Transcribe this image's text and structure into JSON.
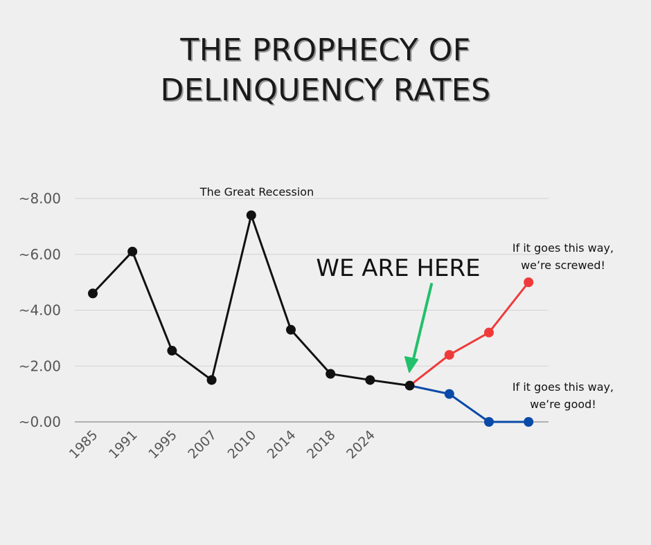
{
  "title": {
    "line1": "THE PROPHECY OF",
    "line2": "DELINQUENCY RATES"
  },
  "chart_data": {
    "type": "line",
    "y_tick_labels": [
      "~0.00",
      "~2.00",
      "~4.00",
      "~6.00",
      "~8.00"
    ],
    "y_ticks": [
      0,
      2,
      4,
      6,
      8
    ],
    "ylim": [
      0,
      8
    ],
    "categories": [
      "1985",
      "1991",
      "1995",
      "2007",
      "2010",
      "2014",
      "2018",
      "2024"
    ],
    "grid": true,
    "series": [
      {
        "key": "history",
        "color": "#111111",
        "x": [
          0,
          1,
          2,
          3,
          4,
          5,
          6,
          7,
          8
        ],
        "values": [
          4.6,
          6.1,
          2.55,
          1.5,
          7.4,
          3.3,
          1.72,
          1.5,
          1.3
        ]
      },
      {
        "key": "bad_scenario",
        "color": "#f03a3a",
        "x": [
          8,
          9,
          10,
          11
        ],
        "values": [
          1.3,
          2.4,
          3.2,
          5.0
        ]
      },
      {
        "key": "good_scenario",
        "color": "#0a4aa8",
        "x": [
          8,
          9,
          10,
          11
        ],
        "values": [
          1.3,
          1.0,
          0.0,
          0.0
        ]
      }
    ],
    "annotations": {
      "recession": "The Great Recession",
      "here": "WE ARE HERE",
      "bad_line1": "If it goes this way,",
      "bad_line2": "we’re screwed!",
      "good_line1": "If it goes this way,",
      "good_line2": "we’re good!"
    },
    "arrow_color": "#22c06a"
  }
}
